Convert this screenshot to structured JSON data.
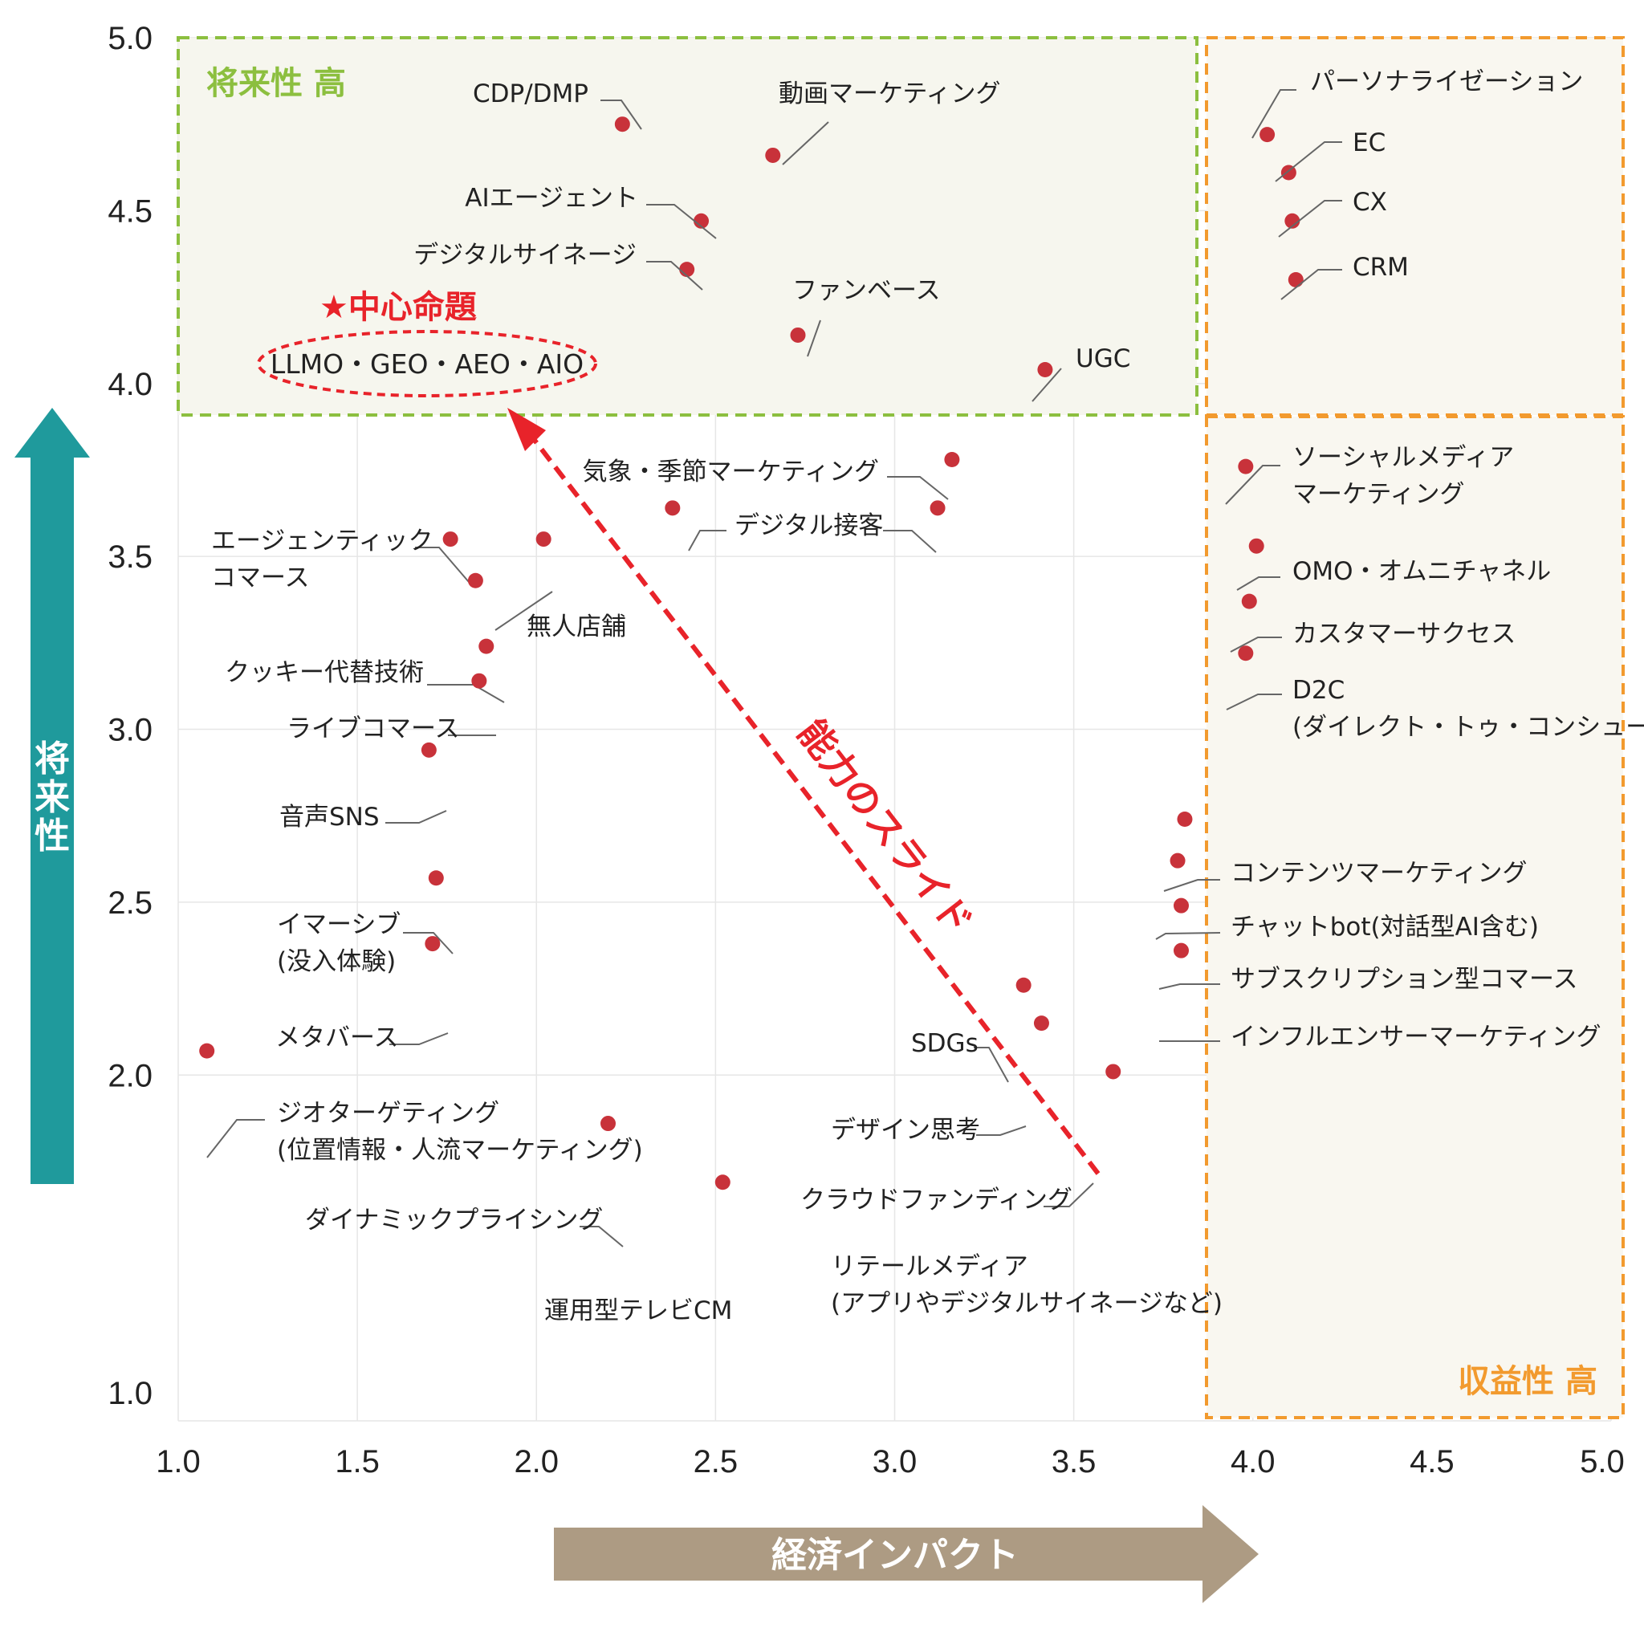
{
  "chart_data": {
    "type": "scatter",
    "title": "",
    "xlabel": "経済インパクト",
    "ylabel": "将来性",
    "xlim": [
      1.0,
      5.0
    ],
    "ylim": [
      1.0,
      5.0
    ],
    "x_ticks": [
      "1.0",
      "1.5",
      "2.0",
      "2.5",
      "3.0",
      "3.5",
      "4.0",
      "4.5",
      "5.0"
    ],
    "y_ticks": [
      "1.0",
      "2.0",
      "2.5",
      "3.0",
      "3.5",
      "4.0",
      "4.5",
      "5.0"
    ],
    "grid": true,
    "point_color": "#c8323a",
    "zones": [
      {
        "label": "将来性 高",
        "color": "#8cbf3f"
      },
      {
        "label": "収益性 高",
        "color": "#f29a2e"
      }
    ],
    "highlight": {
      "label": "★中心命題",
      "text": "LLMO・GEO・AEO・AIO",
      "color": "#e8232a"
    },
    "slide_label": "能力のスライド",
    "points": [
      {
        "label": [
          "CDP/DMP"
        ],
        "x": 2.24,
        "y": 4.75
      },
      {
        "label": [
          "動画マーケティング"
        ],
        "x": 2.66,
        "y": 4.66
      },
      {
        "label": [
          "AIエージェント"
        ],
        "x": 2.46,
        "y": 4.47
      },
      {
        "label": [
          "デジタルサイネージ"
        ],
        "x": 2.42,
        "y": 4.33
      },
      {
        "label": [
          "ファンベース"
        ],
        "x": 2.73,
        "y": 4.14
      },
      {
        "label": [
          "UGC"
        ],
        "x": 3.42,
        "y": 4.04
      },
      {
        "label": [
          "パーソナライゼーション"
        ],
        "x": 4.04,
        "y": 4.72
      },
      {
        "label": [
          "EC"
        ],
        "x": 4.1,
        "y": 4.61
      },
      {
        "label": [
          "CX"
        ],
        "x": 4.11,
        "y": 4.47
      },
      {
        "label": [
          "CRM"
        ],
        "x": 4.12,
        "y": 4.3
      },
      {
        "label": [
          "気象・季節マーケティング"
        ],
        "x": 3.16,
        "y": 3.78
      },
      {
        "label": [
          "デジタル接客"
        ],
        "x": 3.12,
        "y": 3.64
      },
      {
        "label": [
          "デジタル接客"
        ],
        "x": 2.38,
        "y": 3.64,
        "label_hidden": true
      },
      {
        "label": [
          "エージェンティック",
          "コマース"
        ],
        "x": 1.76,
        "y": 3.55
      },
      {
        "label": [
          "無人店舗"
        ],
        "x": 1.83,
        "y": 3.43
      },
      {
        "label": [
          "無人店舗"
        ],
        "x": 2.02,
        "y": 3.55,
        "label_hidden": true
      },
      {
        "label": [
          "クッキー代替技術"
        ],
        "x": 1.86,
        "y": 3.24
      },
      {
        "label": [
          "ライブコマース"
        ],
        "x": 1.84,
        "y": 3.14
      },
      {
        "label": [
          "音声SNS"
        ],
        "x": 1.7,
        "y": 2.94
      },
      {
        "label": [
          "イマーシブ",
          "(没入体験)"
        ],
        "x": 1.72,
        "y": 2.57
      },
      {
        "label": [
          "メタバース"
        ],
        "x": 1.71,
        "y": 2.38
      },
      {
        "label": [
          "ジオターゲティング",
          "(位置情報・人流マーケティング)"
        ],
        "x": 1.08,
        "y": 2.07
      },
      {
        "label": [
          "ダイナミックプライシング"
        ],
        "x": 2.2,
        "y": 1.86
      },
      {
        "label": [
          "運用型テレビCM"
        ],
        "x": 2.52,
        "y": 1.69
      },
      {
        "label": [
          "SDGs"
        ],
        "x": 3.36,
        "y": 2.26
      },
      {
        "label": [
          "デザイン思考"
        ],
        "x": 3.41,
        "y": 2.15
      },
      {
        "label": [
          "クラウドファンディング"
        ],
        "x": 3.61,
        "y": 2.01
      },
      {
        "label": [
          "リテールメディア",
          "(アプリやデジタルサイネージなど)"
        ],
        "x": null,
        "y": null
      },
      {
        "label": [
          "ソーシャルメディア",
          "マーケティング"
        ],
        "x": 3.98,
        "y": 3.76
      },
      {
        "label": [
          "OMO・オムニチャネル"
        ],
        "x": 4.01,
        "y": 3.53
      },
      {
        "label": [
          "カスタマーサクセス"
        ],
        "x": 3.99,
        "y": 3.37
      },
      {
        "label": [
          "D2C",
          "(ダイレクト・トゥ・コンシューマー)"
        ],
        "x": 3.98,
        "y": 3.22
      },
      {
        "label": [
          "コンテンツマーケティング"
        ],
        "x": 3.81,
        "y": 2.74
      },
      {
        "label": [
          "チャットbot(対話型AI含む)"
        ],
        "x": 3.79,
        "y": 2.62
      },
      {
        "label": [
          "サブスクリプション型コマース"
        ],
        "x": 3.8,
        "y": 2.49
      },
      {
        "label": [
          "インフルエンサーマーケティング"
        ],
        "x": 3.8,
        "y": 2.36
      }
    ]
  }
}
